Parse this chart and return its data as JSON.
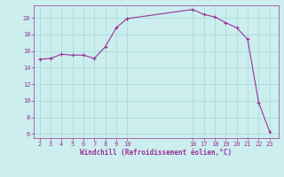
{
  "x": [
    2,
    3,
    4,
    5,
    6,
    7,
    8,
    9,
    10,
    16,
    17,
    18,
    19,
    20,
    21,
    22,
    23
  ],
  "y": [
    15.0,
    15.1,
    15.6,
    15.5,
    15.5,
    15.1,
    16.5,
    18.8,
    19.9,
    21.0,
    20.4,
    20.1,
    19.4,
    18.8,
    17.4,
    9.8,
    6.3
  ],
  "line_color": "#993399",
  "marker": "+",
  "marker_size": 3,
  "xlabel": "Windchill (Refroidissement éolien,°C)",
  "xlabel_color": "#993399",
  "bg_color": "#cceeee",
  "grid_color": "#aadddd",
  "tick_color": "#993399",
  "ylim": [
    5.5,
    21.5
  ],
  "yticks": [
    6,
    8,
    10,
    12,
    14,
    16,
    18,
    20
  ],
  "xticks": [
    2,
    3,
    4,
    5,
    6,
    7,
    8,
    9,
    10,
    16,
    17,
    18,
    19,
    20,
    21,
    22,
    23
  ],
  "xlim": [
    1.5,
    23.8
  ]
}
